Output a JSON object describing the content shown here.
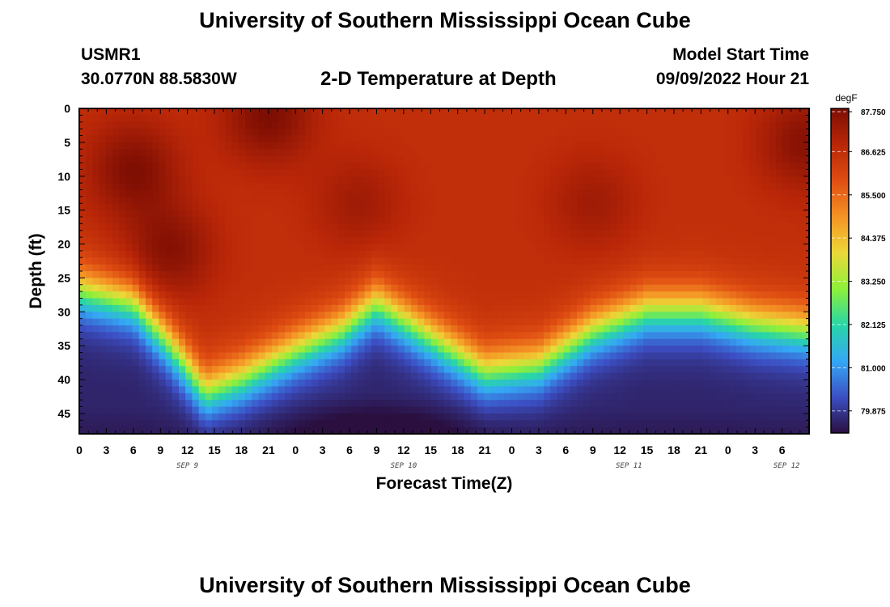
{
  "header": {
    "title": "University of Southern Mississippi Ocean Cube",
    "station": "USMR1",
    "coords": "30.0770N  88.5830W",
    "subtitle": "2-D Temperature at Depth",
    "model_start_label": "Model Start Time",
    "model_start_value": "09/09/2022 Hour 21"
  },
  "footer": {
    "title": "University of Southern Mississippi Ocean Cube"
  },
  "chart_data": {
    "type": "heatmap",
    "title": "2-D Temperature at Depth",
    "xlabel": "Forecast Time(Z)",
    "ylabel": "Depth (ft)",
    "x_hours_since_sep9_00z": [
      0,
      81
    ],
    "x_tick_labels": [
      "0",
      "3",
      "6",
      "9",
      "12",
      "15",
      "18",
      "21",
      "0",
      "3",
      "6",
      "9",
      "12",
      "15",
      "18",
      "21",
      "0",
      "3",
      "6",
      "9",
      "12",
      "15",
      "18",
      "21",
      "0",
      "3",
      "6"
    ],
    "day_labels": [
      {
        "label": "SEP 9",
        "hour": 12
      },
      {
        "label": "SEP 10",
        "hour": 36
      },
      {
        "label": "SEP 11",
        "hour": 61
      },
      {
        "label": "SEP 12",
        "hour": 78.5
      }
    ],
    "ylim": [
      0,
      48
    ],
    "y_ticks": [
      0,
      5,
      10,
      15,
      20,
      25,
      30,
      35,
      40,
      45
    ],
    "colorbar": {
      "unit": "degF",
      "min": 79.3,
      "max": 87.75,
      "labels": [
        "87.750",
        "86.625",
        "85.500",
        "84.375",
        "83.250",
        "82.125",
        "81.000",
        "79.875"
      ],
      "colors": [
        "#2a0f3f",
        "#3c4fc4",
        "#34a8f5",
        "#28d6a6",
        "#8ef03a",
        "#ecd839",
        "#f59324",
        "#df4d12",
        "#b82608",
        "#7d0e03"
      ]
    },
    "thermocline_depth_ft": {
      "hours": [
        0,
        6,
        10,
        14,
        18,
        24,
        29,
        33,
        39,
        45,
        51,
        57,
        63,
        69,
        75,
        81
      ],
      "values": [
        27,
        29,
        35,
        42,
        40,
        36,
        33,
        29,
        34,
        39,
        38,
        33,
        30,
        30,
        32,
        33
      ]
    },
    "warm_mixed_layer_degF": 86.6,
    "bottom_cold_degF": 79.3,
    "warm_cores": [
      {
        "hour": 6,
        "depth_ft": 9,
        "degF": 87.7
      },
      {
        "hour": 10,
        "depth_ft": 21,
        "degF": 87.6
      },
      {
        "hour": 21,
        "depth_ft": 1,
        "degF": 87.75
      },
      {
        "hour": 80.5,
        "depth_ft": 5,
        "degF": 87.6
      },
      {
        "hour": 31,
        "depth_ft": 14,
        "degF": 87.2
      },
      {
        "hour": 57,
        "depth_ft": 14,
        "degF": 87.2
      }
    ]
  }
}
